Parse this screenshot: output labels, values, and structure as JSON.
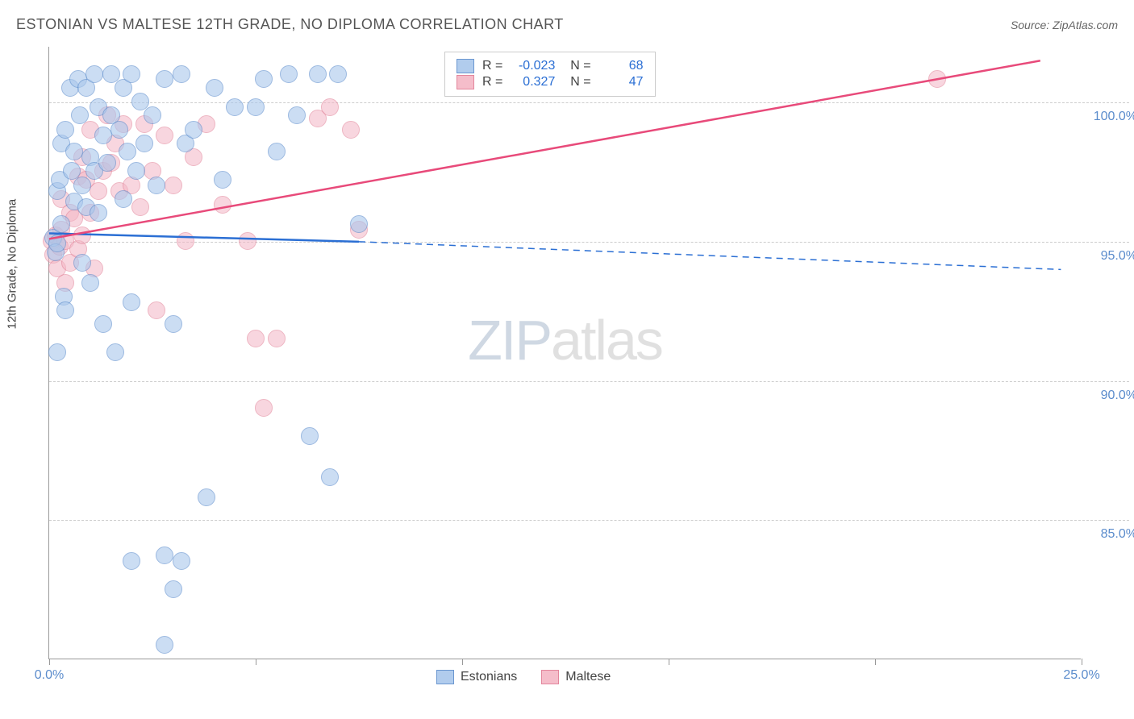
{
  "chart": {
    "type": "scatter-correlation",
    "title": "ESTONIAN VS MALTESE 12TH GRADE, NO DIPLOMA CORRELATION CHART",
    "source_label": "Source: ZipAtlas.com",
    "ylabel": "12th Grade, No Diploma",
    "background_color": "#ffffff",
    "grid_color": "#cccccc",
    "axis_color": "#999999",
    "tick_label_color": "#5b8ccc",
    "label_fontsize": 15,
    "tick_fontsize": 16,
    "title_fontsize": 18,
    "title_color": "#555555",
    "xlim": [
      0,
      25
    ],
    "ylim": [
      80,
      102
    ],
    "x_ticks": [
      0,
      5,
      10,
      15,
      20,
      25
    ],
    "x_tick_labels": [
      "0.0%",
      "",
      "",
      "",
      "",
      "25.0%"
    ],
    "y_gridlines": [
      85.0,
      90.0,
      95.0,
      100.0
    ],
    "y_tick_labels": [
      "85.0%",
      "90.0%",
      "95.0%",
      "100.0%"
    ],
    "watermark": {
      "text_a": "ZIP",
      "text_b": "atlas",
      "color_a": "#cfd8e3",
      "color_b": "#e0e0e0",
      "fontsize": 70
    }
  },
  "series": {
    "estonians": {
      "label": "Estonians",
      "fill_color": "#a9c7ec",
      "fill_opacity": 0.6,
      "stroke_color": "#5b8ccc",
      "marker_radius": 11,
      "line_color": "#2b6fd4",
      "line_width": 2.5,
      "trend": {
        "x1": 0,
        "y1": 95.3,
        "x2": 7.5,
        "y2": 95.0,
        "dash_to_x": 24.5,
        "dash_to_y": 94.0
      },
      "R": "-0.023",
      "N": "68",
      "points": [
        [
          0.1,
          95.1
        ],
        [
          0.15,
          94.6
        ],
        [
          0.2,
          94.9
        ],
        [
          0.2,
          96.8
        ],
        [
          0.25,
          97.2
        ],
        [
          0.3,
          95.6
        ],
        [
          0.3,
          98.5
        ],
        [
          0.35,
          93.0
        ],
        [
          0.4,
          92.5
        ],
        [
          0.4,
          99.0
        ],
        [
          0.5,
          100.5
        ],
        [
          0.55,
          97.5
        ],
        [
          0.6,
          98.2
        ],
        [
          0.6,
          96.4
        ],
        [
          0.7,
          100.8
        ],
        [
          0.75,
          99.5
        ],
        [
          0.8,
          97.0
        ],
        [
          0.8,
          94.2
        ],
        [
          0.9,
          96.2
        ],
        [
          0.9,
          100.5
        ],
        [
          1.0,
          98.0
        ],
        [
          1.0,
          93.5
        ],
        [
          1.1,
          101.0
        ],
        [
          1.1,
          97.5
        ],
        [
          1.2,
          99.8
        ],
        [
          1.2,
          96.0
        ],
        [
          1.3,
          98.8
        ],
        [
          1.3,
          92.0
        ],
        [
          1.4,
          97.8
        ],
        [
          1.5,
          101.0
        ],
        [
          1.5,
          99.5
        ],
        [
          1.6,
          91.0
        ],
        [
          1.7,
          99.0
        ],
        [
          1.8,
          100.5
        ],
        [
          1.8,
          96.5
        ],
        [
          1.9,
          98.2
        ],
        [
          2.0,
          101.0
        ],
        [
          2.0,
          92.8
        ],
        [
          2.1,
          97.5
        ],
        [
          2.2,
          100.0
        ],
        [
          2.3,
          98.5
        ],
        [
          2.5,
          99.5
        ],
        [
          2.6,
          97.0
        ],
        [
          2.8,
          100.8
        ],
        [
          3.0,
          92.0
        ],
        [
          3.2,
          101.0
        ],
        [
          3.3,
          98.5
        ],
        [
          3.5,
          99.0
        ],
        [
          3.8,
          85.8
        ],
        [
          4.0,
          100.5
        ],
        [
          4.2,
          97.2
        ],
        [
          4.5,
          99.8
        ],
        [
          5.0,
          99.8
        ],
        [
          5.2,
          100.8
        ],
        [
          5.5,
          98.2
        ],
        [
          5.8,
          101.0
        ],
        [
          6.0,
          99.5
        ],
        [
          6.3,
          88.0
        ],
        [
          6.5,
          101.0
        ],
        [
          7.0,
          101.0
        ],
        [
          7.5,
          95.6
        ],
        [
          6.8,
          86.5
        ],
        [
          2.0,
          83.5
        ],
        [
          2.8,
          83.7
        ],
        [
          3.2,
          83.5
        ],
        [
          3.0,
          82.5
        ],
        [
          2.8,
          80.5
        ],
        [
          0.2,
          91.0
        ]
      ]
    },
    "maltese": {
      "label": "Maltese",
      "fill_color": "#f4b6c5",
      "fill_opacity": 0.55,
      "stroke_color": "#e07a92",
      "marker_radius": 11,
      "line_color": "#e84a7a",
      "line_width": 2.5,
      "trend": {
        "x1": 0,
        "y1": 95.1,
        "x2": 24,
        "y2": 101.5
      },
      "R": "0.327",
      "N": "47",
      "points": [
        [
          0.05,
          95.0
        ],
        [
          0.1,
          94.5
        ],
        [
          0.15,
          95.2
        ],
        [
          0.2,
          94.0
        ],
        [
          0.25,
          94.8
        ],
        [
          0.3,
          95.4
        ],
        [
          0.3,
          96.5
        ],
        [
          0.4,
          95.0
        ],
        [
          0.4,
          93.5
        ],
        [
          0.5,
          96.0
        ],
        [
          0.5,
          94.2
        ],
        [
          0.6,
          95.8
        ],
        [
          0.7,
          97.3
        ],
        [
          0.7,
          94.7
        ],
        [
          0.8,
          98.0
        ],
        [
          0.8,
          95.2
        ],
        [
          0.9,
          97.2
        ],
        [
          1.0,
          99.0
        ],
        [
          1.0,
          96.0
        ],
        [
          1.1,
          94.0
        ],
        [
          1.2,
          96.8
        ],
        [
          1.3,
          97.5
        ],
        [
          1.4,
          99.5
        ],
        [
          1.5,
          97.8
        ],
        [
          1.6,
          98.5
        ],
        [
          1.7,
          96.8
        ],
        [
          1.8,
          99.2
        ],
        [
          2.0,
          97.0
        ],
        [
          2.2,
          96.2
        ],
        [
          2.3,
          99.2
        ],
        [
          2.5,
          97.5
        ],
        [
          2.6,
          92.5
        ],
        [
          2.8,
          98.8
        ],
        [
          3.0,
          97.0
        ],
        [
          3.3,
          95.0
        ],
        [
          3.5,
          98.0
        ],
        [
          3.8,
          99.2
        ],
        [
          4.2,
          96.3
        ],
        [
          4.8,
          95.0
        ],
        [
          5.0,
          91.5
        ],
        [
          5.5,
          91.5
        ],
        [
          6.5,
          99.4
        ],
        [
          6.8,
          99.8
        ],
        [
          7.3,
          99.0
        ],
        [
          7.5,
          95.4
        ],
        [
          5.2,
          89.0
        ],
        [
          21.5,
          100.8
        ]
      ]
    }
  },
  "legend_bottom": [
    "estonians",
    "maltese"
  ]
}
